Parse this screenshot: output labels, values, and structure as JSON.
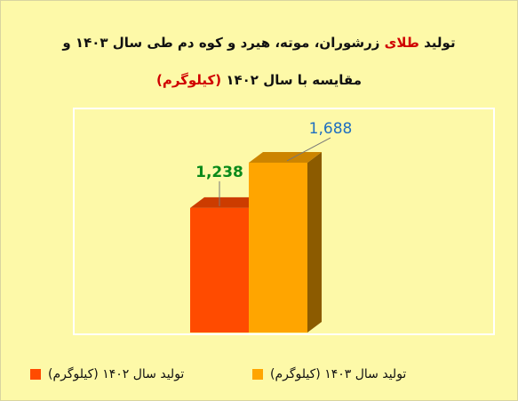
{
  "chart_data": {
    "type": "bar3d",
    "title": [
      "تولید",
      "طلای",
      "زرشوران، موته، هیرد و کوه دم طی سال ۱۴۰۳ و"
    ],
    "subtitle": [
      "مقایسه با سال ۱۴۰۲",
      "(کیلوگرم)"
    ],
    "highlight_color": "#d00000",
    "ylim": [
      0,
      2200
    ],
    "series": [
      {
        "name": "تولید سال ۱۴۰۲ (کیلوگرم)",
        "color": "#ff4b00",
        "values": [
          1238
        ],
        "value_labels": [
          "1,238"
        ],
        "label_color": "#0a8a1a"
      },
      {
        "name": "تولید سال ۱۴۰۳ (کیلوگرم)",
        "color": "#ffa500",
        "values": [
          1688
        ],
        "value_labels": [
          "1,688"
        ],
        "label_color": "#1f6fc0"
      }
    ]
  }
}
